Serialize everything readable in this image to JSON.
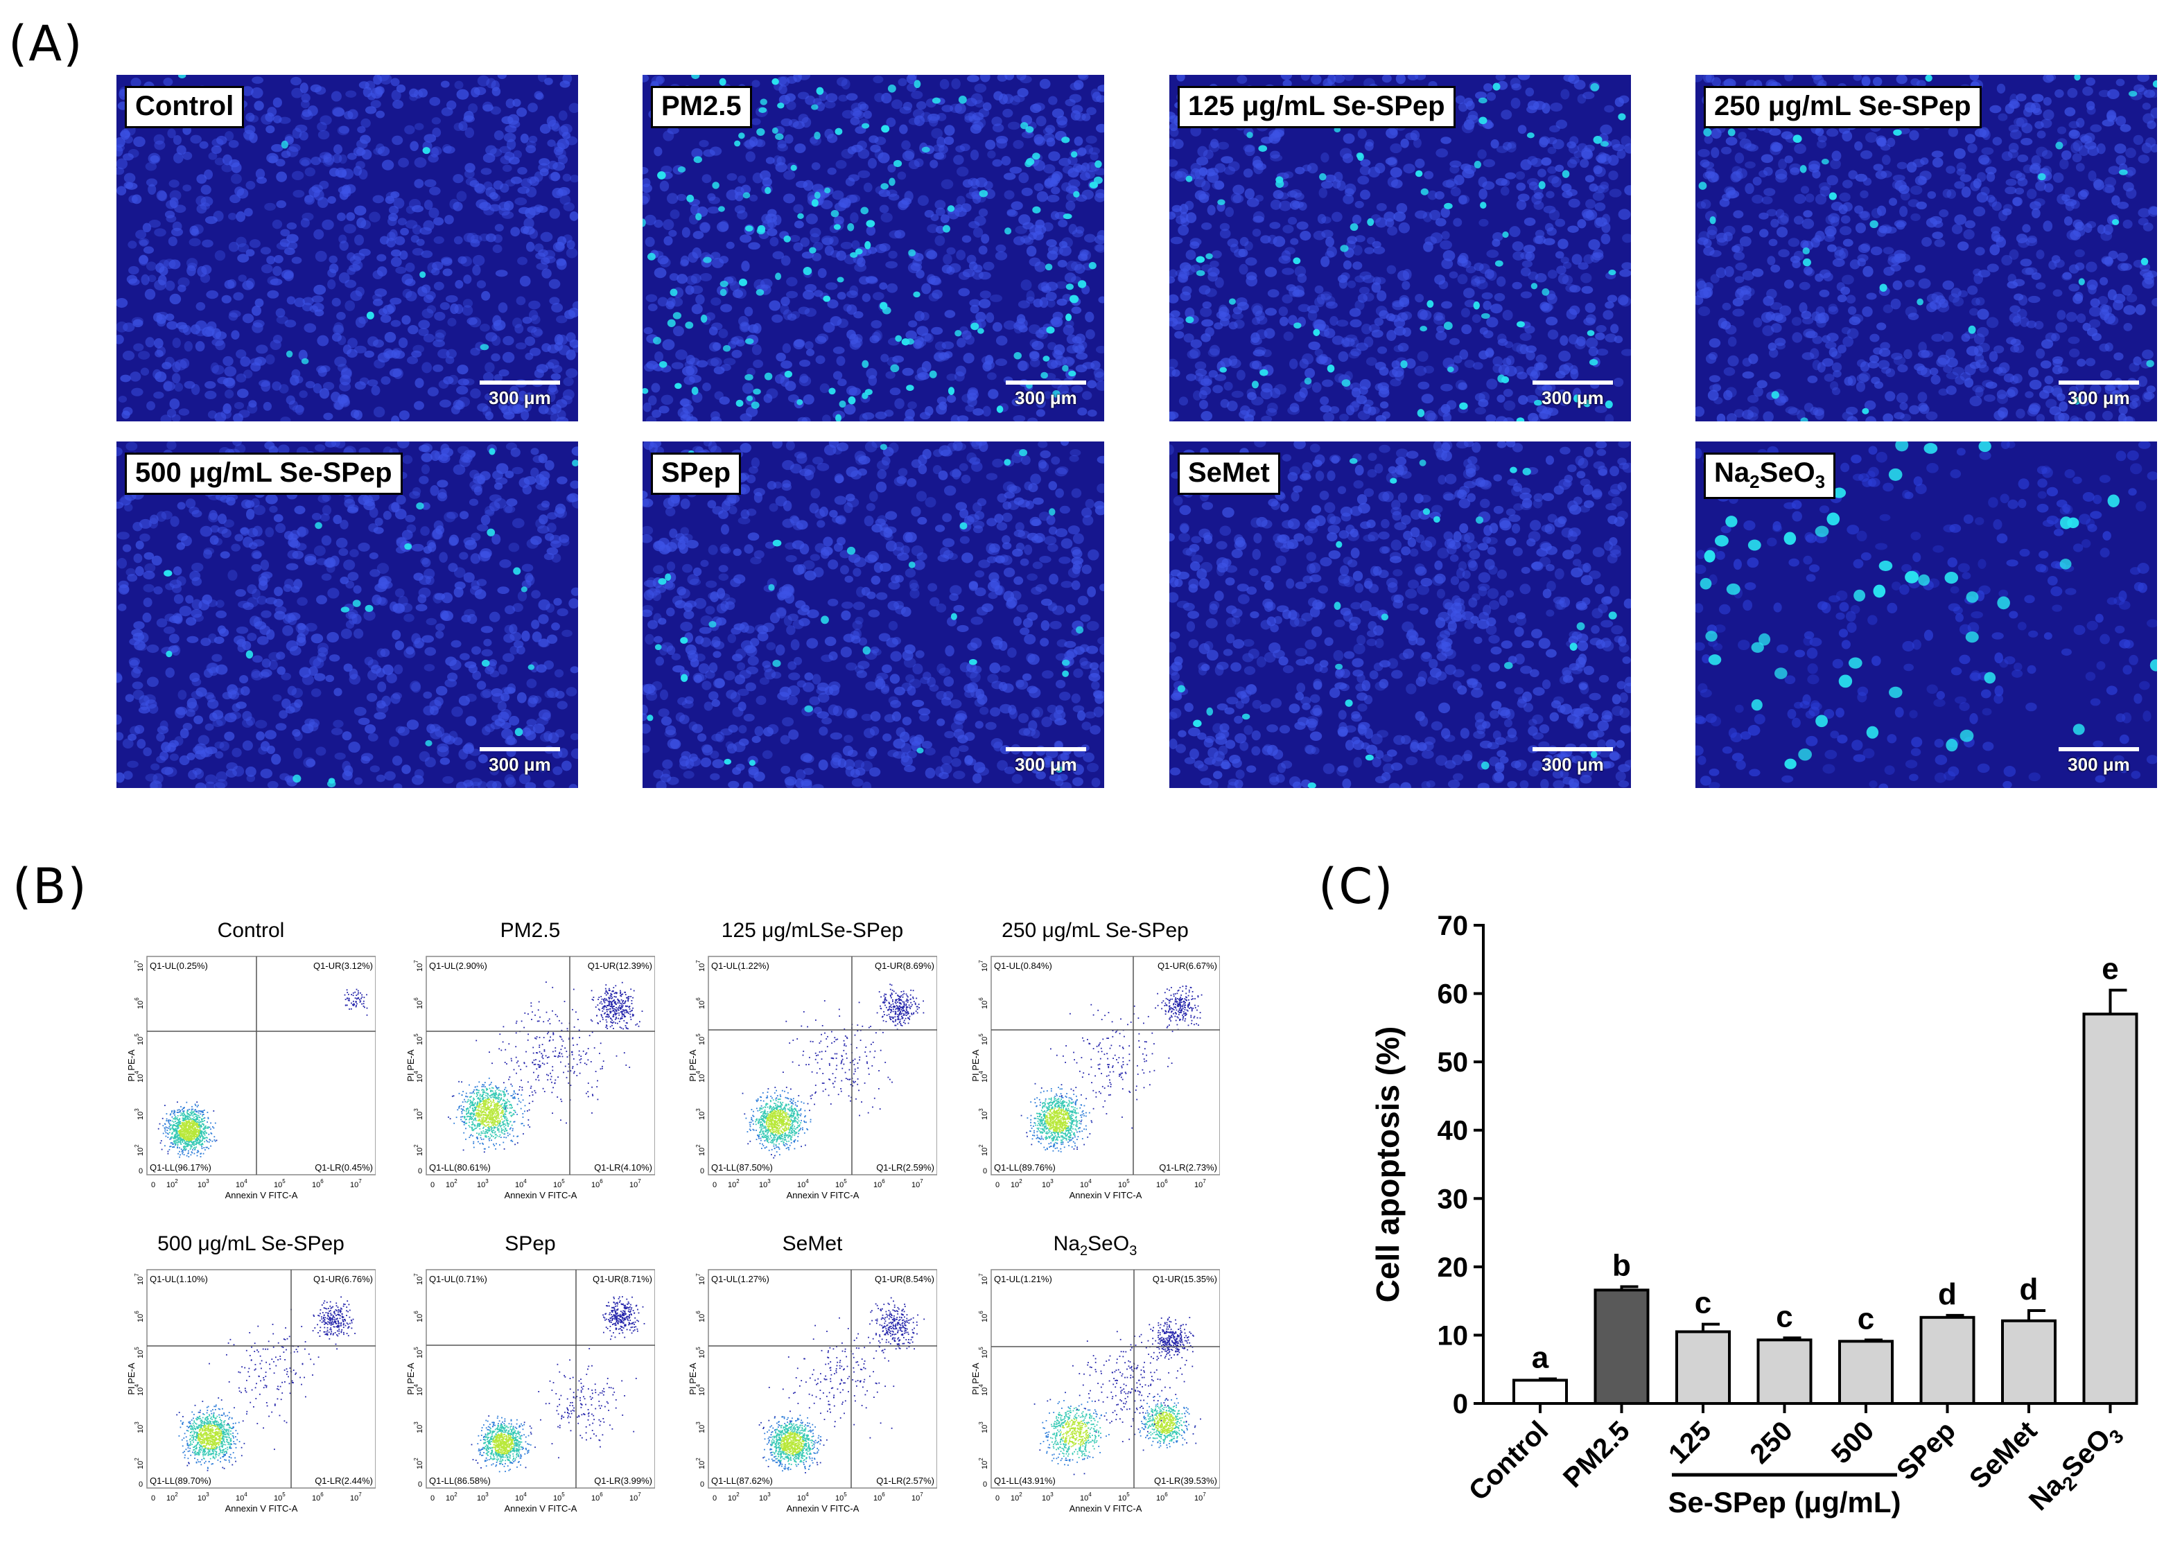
{
  "panel_labels": {
    "a": "(A)",
    "b": "(B)",
    "c": "(C)"
  },
  "colors": {
    "micro_bg": "#16168e",
    "nucleus": "#3d53e6",
    "apoptotic": "#29e2f0",
    "bar_light": "#d3d3d3",
    "bar_dark": "#595959"
  },
  "micrographs": [
    {
      "label": "Control",
      "scale": "300 μm",
      "density": "high",
      "bright": 8
    },
    {
      "label": "PM2.5",
      "scale": "300 μm",
      "density": "high",
      "bright": 140
    },
    {
      "label": "125 μg/mL Se-SPep",
      "scale": "300 μm",
      "density": "high",
      "bright": 70
    },
    {
      "label": "250 μg/mL Se-SPep",
      "scale": "300 μm",
      "density": "high",
      "bright": 30
    },
    {
      "label": "500 μg/mL Se-SPep",
      "scale": "300 μm",
      "density": "high",
      "bright": 22
    },
    {
      "label": "SPep",
      "scale": "300 μm",
      "density": "high",
      "bright": 30
    },
    {
      "label": "SeMet",
      "scale": "300 μm",
      "density": "high",
      "bright": 25
    },
    {
      "label": "Na2SeO3",
      "label_main": "Na",
      "label_sub1": "2",
      "label_mid": "SeO",
      "label_sub2": "3",
      "scale": "300 μm",
      "density": "low",
      "bright": 45
    }
  ],
  "flow_plots": [
    {
      "title": "Control",
      "ul": "Q1-UL(0.25%)",
      "ur": "Q1-UR(3.12%)",
      "ll": "Q1-LL(96.17%)",
      "lr": "Q1-LR(0.45%)",
      "xlabel": "Annexin V FITC-A",
      "ylabel": "PI PE-A"
    },
    {
      "title": "PM2.5",
      "ul": "Q1-UL(2.90%)",
      "ur": "Q1-UR(12.39%)",
      "ll": "Q1-LL(80.61%)",
      "lr": "Q1-LR(4.10%)",
      "xlabel": "Annexin V FITC-A",
      "ylabel": "PI PE-A"
    },
    {
      "title": "125 μg/mLSe-SPep",
      "ul": "Q1-UL(1.22%)",
      "ur": "Q1-UR(8.69%)",
      "ll": "Q1-LL(87.50%)",
      "lr": "Q1-LR(2.59%)",
      "xlabel": "Annexin V FITC-A",
      "ylabel": "PI PE-A"
    },
    {
      "title": "250 μg/mL Se-SPep",
      "ul": "Q1-UL(0.84%)",
      "ur": "Q1-UR(6.67%)",
      "ll": "Q1-LL(89.76%)",
      "lr": "Q1-LR(2.73%)",
      "xlabel": "Annexin V FITC-A",
      "ylabel": "PI PE-A"
    },
    {
      "title": "500 μg/mL Se-SPep",
      "ul": "Q1-UL(1.10%)",
      "ur": "Q1-UR(6.76%)",
      "ll": "Q1-LL(89.70%)",
      "lr": "Q1-LR(2.44%)",
      "xlabel": "Annexin V FITC-A",
      "ylabel": "PI PE-A"
    },
    {
      "title": "SPep",
      "ul": "Q1-UL(0.71%)",
      "ur": "Q1-UR(8.71%)",
      "ll": "Q1-LL(86.58%)",
      "lr": "Q1-LR(3.99%)",
      "xlabel": "Annexin V FITC-A",
      "ylabel": "PI PE-A"
    },
    {
      "title": "SeMet",
      "ul": "Q1-UL(1.27%)",
      "ur": "Q1-UR(8.54%)",
      "ll": "Q1-LL(87.62%)",
      "lr": "Q1-LR(2.57%)",
      "xlabel": "Annexin V FITC-A",
      "ylabel": "PI PE-A"
    },
    {
      "title": "Na2SeO3",
      "title_main": "Na",
      "title_sub1": "2",
      "title_mid": "SeO",
      "title_sub2": "3",
      "ul": "Q1-UL(1.21%)",
      "ur": "Q1-UR(15.35%)",
      "ll": "Q1-LL(43.91%)",
      "lr": "Q1-LR(39.53%)",
      "xlabel": "Annexin V FITC-A",
      "ylabel": "PI PE-A"
    }
  ],
  "flow_axes": {
    "ticks": [
      "10",
      "10",
      "10",
      "10",
      "10",
      "10"
    ],
    "exponents": [
      "2",
      "3",
      "4",
      "5",
      "6",
      "7"
    ],
    "zero": "0"
  },
  "chart_data": {
    "type": "bar",
    "categories": [
      "Control",
      "PM2.5",
      "125",
      "250",
      "500",
      "SPep",
      "SeMet",
      "Na2SeO3"
    ],
    "values": [
      3.4,
      16.6,
      10.5,
      9.3,
      9.1,
      12.6,
      12.1,
      57.0
    ],
    "errors": [
      0.2,
      0.5,
      1.1,
      0.3,
      0.2,
      0.3,
      1.5,
      3.5
    ],
    "letters": [
      "a",
      "b",
      "c",
      "c",
      "c",
      "d",
      "d",
      "e"
    ],
    "bar_fill": [
      "white",
      "dark",
      "light",
      "light",
      "light",
      "light",
      "light",
      "light"
    ],
    "ylabel": "Cell apoptosis (%)",
    "ylim": [
      0,
      70
    ],
    "yticks": [
      0,
      10,
      20,
      30,
      40,
      50,
      60,
      70
    ],
    "group_label": "Se-SPep (μg/mL)",
    "na_label": {
      "main": "Na",
      "sub1": "2",
      "mid": "SeO",
      "sub2": "3"
    }
  }
}
